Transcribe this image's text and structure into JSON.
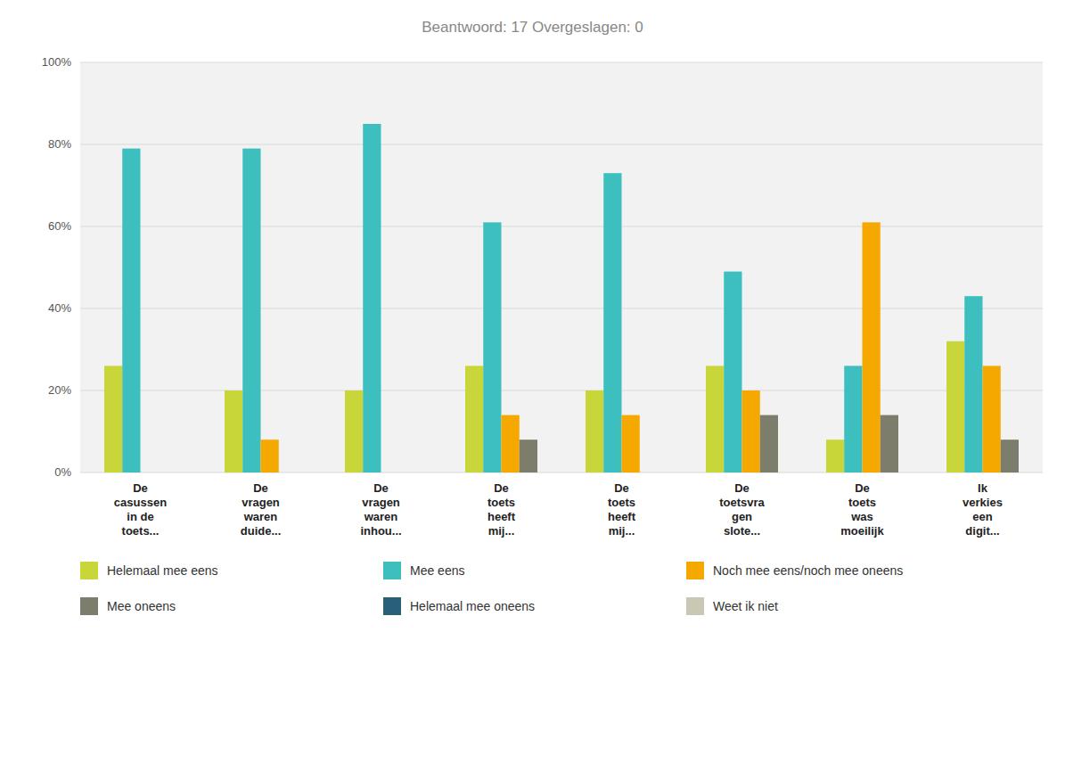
{
  "chart_data": {
    "type": "bar",
    "title": "Beantwoord: 17    Overgeslagen: 0",
    "categories": [
      "De\ncasussen\nin de\ntoets...",
      "De\nvragen\nwaren\nduide...",
      "De\nvragen\nwaren\ninhou...",
      "De\ntoets\nheeft\nmij...",
      "De\ntoets\nheeft\nmij...",
      "De\ntoetsvra\ngen\nslote...",
      "De\ntoets\nwas\nmoeilijk",
      "Ik\nverkies\neen\ndigit..."
    ],
    "series": [
      {
        "name": "Helemaal mee eens",
        "color": "#c8d63a",
        "values": [
          26,
          20,
          20,
          26,
          20,
          26,
          8,
          32
        ]
      },
      {
        "name": "Mee eens",
        "color": "#3dbfc0",
        "values": [
          79,
          79,
          85,
          61,
          73,
          49,
          26,
          43
        ]
      },
      {
        "name": "Noch mee eens/noch mee oneens",
        "color": "#f5a800",
        "values": [
          0,
          8,
          0,
          14,
          14,
          20,
          61,
          26
        ]
      },
      {
        "name": "Mee oneens",
        "color": "#7d7d6b",
        "values": [
          0,
          0,
          0,
          8,
          0,
          14,
          14,
          8
        ]
      },
      {
        "name": "Helemaal mee oneens",
        "color": "#2a5f7a",
        "values": [
          0,
          0,
          0,
          0,
          0,
          0,
          0,
          0
        ]
      },
      {
        "name": "Weet ik niet",
        "color": "#c8c8b4",
        "values": [
          0,
          0,
          0,
          0,
          0,
          0,
          0,
          0
        ]
      }
    ],
    "ylim": [
      0,
      100
    ],
    "yticks": [
      {
        "value": 0,
        "label": "0%"
      },
      {
        "value": 20,
        "label": "20%"
      },
      {
        "value": 40,
        "label": "40%"
      },
      {
        "value": 60,
        "label": "60%"
      },
      {
        "value": 80,
        "label": "80%"
      },
      {
        "value": 100,
        "label": "100%"
      }
    ],
    "grid": true,
    "legend": "bottom"
  }
}
